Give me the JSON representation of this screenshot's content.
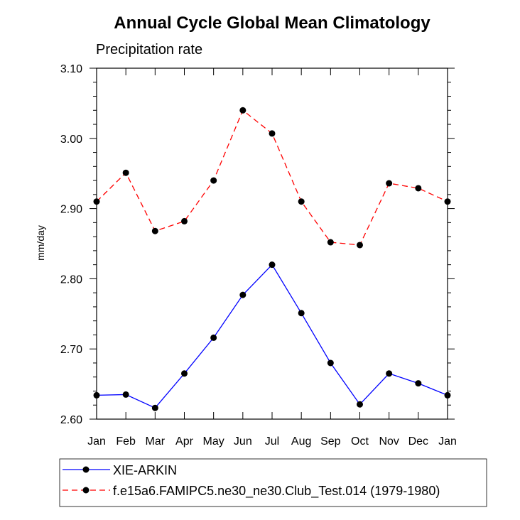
{
  "chart_data": {
    "type": "line",
    "title": "Annual Cycle Global Mean Climatology",
    "subtitle": "Precipitation rate",
    "xlabel": "",
    "ylabel": "mm/day",
    "categories": [
      "Jan",
      "Feb",
      "Mar",
      "Apr",
      "May",
      "Jun",
      "Jul",
      "Aug",
      "Sep",
      "Oct",
      "Nov",
      "Dec",
      "Jan"
    ],
    "ylim": [
      2.6,
      3.1
    ],
    "yticks": [
      "2.60",
      "2.70",
      "2.80",
      "2.90",
      "3.00",
      "3.10"
    ],
    "grid": false,
    "legend_position": "bottom",
    "series": [
      {
        "name": "XIE-ARKIN",
        "color": "#0000ff",
        "dashed": false,
        "values": [
          2.634,
          2.635,
          2.616,
          2.665,
          2.716,
          2.777,
          2.82,
          2.751,
          2.68,
          2.621,
          2.665,
          2.651,
          2.634
        ]
      },
      {
        "name": "f.e15a6.FAMIPC5.ne30_ne30.Club_Test.014 (1979-1980)",
        "color": "#ff0000",
        "dashed": true,
        "values": [
          2.91,
          2.951,
          2.868,
          2.882,
          2.94,
          3.04,
          3.007,
          2.91,
          2.852,
          2.848,
          2.936,
          2.929,
          2.91
        ]
      }
    ]
  }
}
